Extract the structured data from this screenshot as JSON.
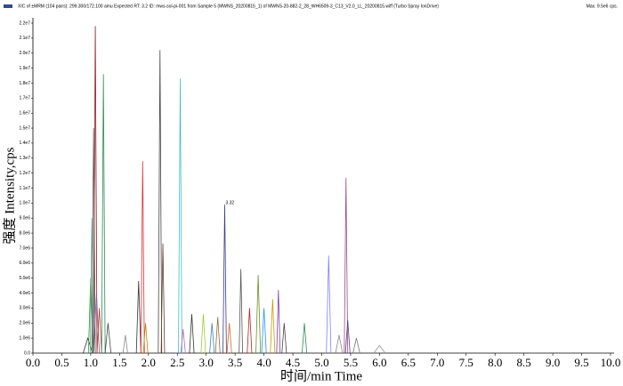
{
  "chart_data": {
    "type": "line",
    "title": "XIC of ±MRM (104 pairs): 299.300/172.100 amu Expected RT: 3.2 ID: mws-sol-pi-001 from Sample 5 (MWNS_20200815_1) of MWNS-20-882-2_28_WH6509-3_C13_V2.0_LL_20200815.wiff (Turbo Spray IonDrive)",
    "subtitle": "Max. 9.5e6 cps.",
    "x_label": "时间/min Time",
    "y_label": "强度 Intensity,cps",
    "xlim": [
      0,
      10
    ],
    "ylim": [
      0,
      22000000
    ],
    "xticks": [
      {
        "value": 0,
        "label": "0.0"
      },
      0.5,
      {
        "value": 1,
        "label": "1.0"
      },
      1.5,
      {
        "value": 2,
        "label": "2.0"
      },
      2.5,
      {
        "value": 3,
        "label": "3.0"
      },
      3.5,
      {
        "value": 4,
        "label": "4.0"
      },
      4.5,
      {
        "value": 5,
        "label": "5.0"
      },
      5.5,
      {
        "value": 6,
        "label": "6.0"
      },
      6.5,
      {
        "value": 7,
        "label": "7.0"
      },
      7.5,
      {
        "value": 8,
        "label": "8.0"
      },
      8.5,
      {
        "value": 9,
        "label": "9.0"
      },
      9.5,
      {
        "value": 10,
        "label": "10.0"
      }
    ],
    "yticks": [
      {
        "value": 0,
        "label": "0.0"
      },
      {
        "value": 1000000,
        "label": "1.0e6"
      },
      {
        "value": 2000000,
        "label": "2.0e6"
      },
      {
        "value": 3000000,
        "label": "3.0e6"
      },
      {
        "value": 4000000,
        "label": "4.0e6"
      },
      {
        "value": 5000000,
        "label": "5.0e6"
      },
      {
        "value": 6000000,
        "label": "6.0e6"
      },
      {
        "value": 7000000,
        "label": "7.0e6"
      },
      {
        "value": 8000000,
        "label": "8.0e6"
      },
      {
        "value": 9000000,
        "label": "9.0e6"
      },
      {
        "value": 10000000,
        "label": "1.0e7"
      },
      {
        "value": 11000000,
        "label": "1.1e7"
      },
      {
        "value": 12000000,
        "label": "1.2e7"
      },
      {
        "value": 13000000,
        "label": "1.3e7"
      },
      {
        "value": 14000000,
        "label": "1.4e7"
      },
      {
        "value": 15000000,
        "label": "1.5e7"
      },
      {
        "value": 16000000,
        "label": "1.6e7"
      },
      {
        "value": 17000000,
        "label": "1.7e7"
      },
      {
        "value": 18000000,
        "label": "1.8e7"
      },
      {
        "value": 19000000,
        "label": "1.9e7"
      },
      {
        "value": 20000000,
        "label": "2.0e7"
      },
      {
        "value": 21000000,
        "label": "2.1e7"
      },
      {
        "value": 22000000,
        "label": "2.2e7"
      }
    ],
    "annotations": [
      {
        "label": "3.32",
        "x": 3.32,
        "y": 9900000
      }
    ],
    "series": [
      {
        "color": "#333333",
        "x": [
          0.87,
          0.95,
          1.03
        ],
        "values": [
          0,
          1000000,
          0
        ]
      },
      {
        "color": "#2ca02c",
        "x": [
          0.96,
          1.0,
          1.04
        ],
        "values": [
          0,
          5000000,
          0
        ]
      },
      {
        "color": "#55aa99",
        "x": [
          0.99,
          1.02,
          1.05
        ],
        "values": [
          0,
          9000000,
          0
        ]
      },
      {
        "color": "#555555",
        "x": [
          1.02,
          1.05,
          1.08
        ],
        "values": [
          0,
          15000000,
          0
        ]
      },
      {
        "color": "#8b1a1a",
        "x": [
          1.05,
          1.08,
          1.11
        ],
        "values": [
          0,
          21800000,
          0
        ]
      },
      {
        "color": "#7b5ea7",
        "x": [
          1.05,
          1.1,
          1.15
        ],
        "values": [
          0,
          4000000,
          0
        ]
      },
      {
        "color": "#c0392b",
        "x": [
          1.11,
          1.15,
          1.19
        ],
        "values": [
          0,
          3000000,
          0
        ]
      },
      {
        "color": "#2e8b57",
        "x": [
          1.19,
          1.22,
          1.25
        ],
        "values": [
          0,
          18600000,
          0
        ]
      },
      {
        "color": "#444444",
        "x": [
          1.25,
          1.3,
          1.35
        ],
        "values": [
          0,
          2000000,
          0
        ]
      },
      {
        "color": "#888888",
        "x": [
          1.56,
          1.6,
          1.64
        ],
        "values": [
          0,
          1200000,
          0
        ]
      },
      {
        "color": "#333333",
        "x": [
          1.79,
          1.83,
          1.87
        ],
        "values": [
          0,
          4800000,
          0
        ]
      },
      {
        "color": "#e03030",
        "x": [
          1.87,
          1.9,
          1.93
        ],
        "values": [
          0,
          12800000,
          0
        ]
      },
      {
        "color": "#b8860b",
        "x": [
          1.91,
          1.95,
          1.99
        ],
        "values": [
          0,
          2000000,
          0
        ]
      },
      {
        "color": "#444444",
        "x": [
          2.17,
          2.2,
          2.23
        ],
        "values": [
          0,
          20200000,
          0
        ]
      },
      {
        "color": "#6b4226",
        "x": [
          2.22,
          2.25,
          2.28
        ],
        "values": [
          0,
          7300000,
          0
        ]
      },
      {
        "color": "#40c0c0",
        "x": [
          2.52,
          2.55,
          2.58
        ],
        "values": [
          0,
          18300000,
          0
        ]
      },
      {
        "color": "#c060c0",
        "x": [
          2.56,
          2.6,
          2.64
        ],
        "values": [
          0,
          1600000,
          0
        ]
      },
      {
        "color": "#333333",
        "x": [
          2.71,
          2.75,
          2.79
        ],
        "values": [
          0,
          2600000,
          0
        ]
      },
      {
        "color": "#9acd32",
        "x": [
          2.91,
          2.95,
          2.99
        ],
        "values": [
          0,
          2600000,
          0
        ]
      },
      {
        "color": "#4682b4",
        "x": [
          3.06,
          3.1,
          3.14
        ],
        "values": [
          0,
          2000000,
          0
        ]
      },
      {
        "color": "#8a6d3b",
        "x": [
          3.16,
          3.2,
          3.24
        ],
        "values": [
          0,
          2400000,
          0
        ]
      },
      {
        "color": "#3a3a8c",
        "x": [
          3.29,
          3.32,
          3.35
        ],
        "values": [
          0,
          9900000,
          0
        ]
      },
      {
        "color": "#d2691e",
        "x": [
          3.36,
          3.4,
          3.44
        ],
        "values": [
          0,
          2000000,
          0
        ]
      },
      {
        "color": "#555555",
        "x": [
          3.57,
          3.6,
          3.63
        ],
        "values": [
          0,
          5600000,
          0
        ]
      },
      {
        "color": "#b22222",
        "x": [
          3.71,
          3.75,
          3.79
        ],
        "values": [
          0,
          3000000,
          0
        ]
      },
      {
        "color": "#6b8e23",
        "x": [
          3.86,
          3.9,
          3.94
        ],
        "values": [
          0,
          5200000,
          0
        ]
      },
      {
        "color": "#1e90ff",
        "x": [
          3.96,
          4.0,
          4.04
        ],
        "values": [
          0,
          3000000,
          0
        ]
      },
      {
        "color": "#cc9900",
        "x": [
          4.11,
          4.15,
          4.19
        ],
        "values": [
          0,
          3600000,
          0
        ]
      },
      {
        "color": "#7b3f9e",
        "x": [
          4.22,
          4.25,
          4.28
        ],
        "values": [
          0,
          4200000,
          0
        ]
      },
      {
        "color": "#444444",
        "x": [
          4.31,
          4.35,
          4.39
        ],
        "values": [
          0,
          2000000,
          0
        ]
      },
      {
        "color": "#2e8b57",
        "x": [
          4.66,
          4.7,
          4.74
        ],
        "values": [
          0,
          2000000,
          0
        ]
      },
      {
        "color": "#8080ff",
        "x": [
          5.08,
          5.12,
          5.16
        ],
        "values": [
          0,
          6500000,
          0
        ]
      },
      {
        "color": "#888888",
        "x": [
          5.24,
          5.3,
          5.36
        ],
        "values": [
          0,
          1200000,
          0
        ]
      },
      {
        "color": "#9e4a7c",
        "x": [
          5.39,
          5.42,
          5.45
        ],
        "values": [
          0,
          11700000,
          0
        ]
      },
      {
        "color": "#5a3d7a",
        "x": [
          5.41,
          5.45,
          5.49
        ],
        "values": [
          0,
          2200000,
          0
        ]
      },
      {
        "color": "#777777",
        "x": [
          5.54,
          5.6,
          5.66
        ],
        "values": [
          0,
          1000000,
          0
        ]
      },
      {
        "color": "#999999",
        "x": [
          5.9,
          6.0,
          6.1
        ],
        "values": [
          0,
          500000,
          0
        ]
      }
    ]
  }
}
